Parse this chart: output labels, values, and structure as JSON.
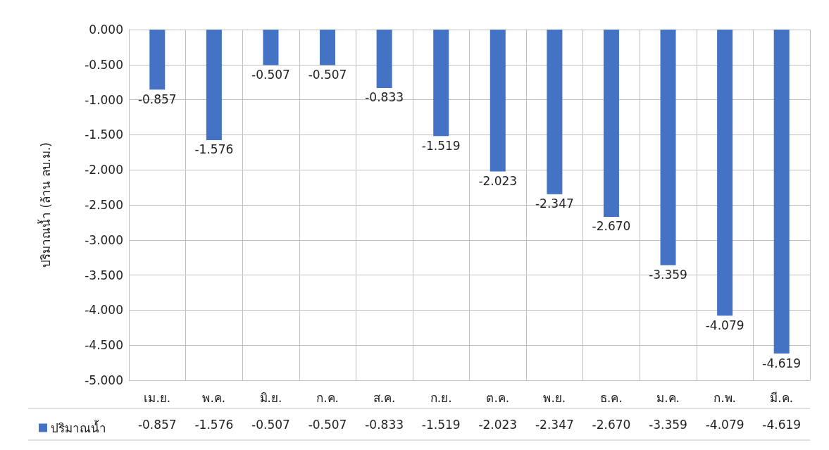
{
  "chart_data": {
    "type": "bar",
    "ylabel": "ปริมาณน้ำ (ล้าน ลบ.ม.)",
    "categories": [
      "เม.ย.",
      "พ.ค.",
      "มิ.ย.",
      "ก.ค.",
      "ส.ค.",
      "ก.ย.",
      "ต.ค.",
      "พ.ย.",
      "ธ.ค.",
      "ม.ค.",
      "ก.พ.",
      "มี.ค."
    ],
    "series": [
      {
        "name": "ปริมาณน้ำ",
        "color": "#4472c4",
        "values": [
          -0.857,
          -1.576,
          -0.507,
          -0.507,
          -0.833,
          -1.519,
          -2.023,
          -2.347,
          -2.67,
          -3.359,
          -4.079,
          -4.619
        ],
        "value_labels": [
          "-0.857",
          "-1.576",
          "-0.507",
          "-0.507",
          "-0.833",
          "-1.519",
          "-2.023",
          "-2.347",
          "-2.670",
          "-3.359",
          "-4.079",
          "-4.619"
        ]
      }
    ],
    "ylim": [
      -5,
      0
    ],
    "yticks": [
      {
        "value": 0,
        "label": "0.000"
      },
      {
        "value": -0.5,
        "label": "-0.500"
      },
      {
        "value": -1,
        "label": "-1.000"
      },
      {
        "value": -1.5,
        "label": "-1.500"
      },
      {
        "value": -2,
        "label": "-2.000"
      },
      {
        "value": -2.5,
        "label": "-2.500"
      },
      {
        "value": -3,
        "label": "-3.000"
      },
      {
        "value": -3.5,
        "label": "-3.500"
      },
      {
        "value": -4,
        "label": "-4.000"
      },
      {
        "value": -4.5,
        "label": "-4.500"
      },
      {
        "value": -5,
        "label": "-5.000"
      }
    ],
    "grid": true,
    "legend": "bottom left"
  }
}
